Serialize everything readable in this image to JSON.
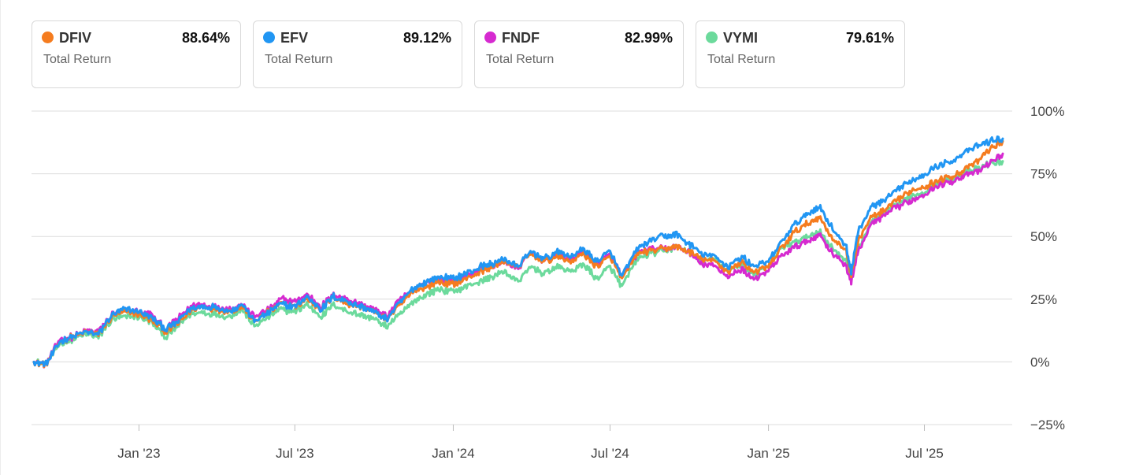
{
  "legend": [
    {
      "ticker": "DFIV",
      "value": "88.64%",
      "sub": "Total Return",
      "color": "#F57C1F"
    },
    {
      "ticker": "EFV",
      "value": "89.12%",
      "sub": "Total Return",
      "color": "#2196F3"
    },
    {
      "ticker": "FNDF",
      "value": "82.99%",
      "sub": "Total Return",
      "color": "#D62AD0"
    },
    {
      "ticker": "VYMI",
      "value": "79.61%",
      "sub": "Total Return",
      "color": "#6CDA9C"
    }
  ],
  "chart_data": {
    "type": "line",
    "x_range": [
      "2022-09-01",
      "2025-09-30"
    ],
    "ylim": [
      -25,
      100
    ],
    "y_ticks": [
      100,
      75,
      50,
      25,
      0,
      -25
    ],
    "y_tick_labels": [
      "100%",
      "75%",
      "50%",
      "25%",
      "0%",
      "−25%"
    ],
    "x_ticks": [
      "2023-01-01",
      "2023-07-01",
      "2024-01-01",
      "2024-07-01",
      "2025-01-01",
      "2025-07-01"
    ],
    "x_tick_labels": [
      "Jan '23",
      "Jul '23",
      "Jan '24",
      "Jul '24",
      "Jan '25",
      "Jul '25"
    ],
    "grid": "horizontal",
    "x": [
      "2022-09-01",
      "2022-09-15",
      "2022-10-01",
      "2022-10-15",
      "2022-11-01",
      "2022-11-15",
      "2022-12-01",
      "2022-12-15",
      "2023-01-01",
      "2023-01-15",
      "2023-02-01",
      "2023-02-15",
      "2023-03-01",
      "2023-03-15",
      "2023-04-01",
      "2023-04-15",
      "2023-05-01",
      "2023-05-15",
      "2023-06-01",
      "2023-06-15",
      "2023-07-01",
      "2023-07-15",
      "2023-08-01",
      "2023-08-15",
      "2023-09-01",
      "2023-09-15",
      "2023-10-01",
      "2023-10-15",
      "2023-11-01",
      "2023-11-15",
      "2023-12-01",
      "2023-12-15",
      "2024-01-01",
      "2024-01-15",
      "2024-02-01",
      "2024-02-15",
      "2024-03-01",
      "2024-03-15",
      "2024-04-01",
      "2024-04-15",
      "2024-05-01",
      "2024-05-15",
      "2024-06-01",
      "2024-06-15",
      "2024-07-01",
      "2024-07-15",
      "2024-08-01",
      "2024-08-15",
      "2024-09-01",
      "2024-09-15",
      "2024-10-01",
      "2024-10-15",
      "2024-11-01",
      "2024-11-15",
      "2024-12-01",
      "2024-12-15",
      "2025-01-01",
      "2025-01-15",
      "2025-02-01",
      "2025-02-15",
      "2025-03-01",
      "2025-03-15",
      "2025-04-01",
      "2025-04-07",
      "2025-04-15",
      "2025-05-01",
      "2025-05-15",
      "2025-06-01",
      "2025-06-15",
      "2025-07-01",
      "2025-07-15",
      "2025-08-01",
      "2025-08-15",
      "2025-09-01",
      "2025-09-15",
      "2025-09-30"
    ],
    "series": [
      {
        "name": "DFIV",
        "color": "#F57C1F",
        "values": [
          0,
          -1,
          8,
          10,
          12,
          11,
          18,
          20,
          19,
          17,
          12,
          15,
          20,
          22,
          21,
          20,
          22,
          16,
          20,
          23,
          22,
          25,
          21,
          26,
          23,
          22,
          20,
          17,
          23,
          28,
          30,
          32,
          31,
          33,
          36,
          38,
          40,
          38,
          43,
          40,
          42,
          40,
          43,
          38,
          42,
          33,
          43,
          44,
          45,
          46,
          44,
          41,
          40,
          36,
          40,
          36,
          38,
          45,
          52,
          55,
          58,
          50,
          44,
          35,
          48,
          58,
          60,
          65,
          68,
          70,
          72,
          74,
          76,
          80,
          85,
          88
        ]
      },
      {
        "name": "EFV",
        "color": "#2196F3",
        "values": [
          0,
          -1,
          8,
          10,
          12,
          11,
          19,
          21,
          20,
          18,
          13,
          16,
          21,
          22,
          22,
          20,
          23,
          16,
          20,
          23,
          22,
          26,
          21,
          26,
          24,
          22,
          20,
          17,
          24,
          29,
          32,
          34,
          33,
          35,
          38,
          39,
          41,
          38,
          44,
          41,
          44,
          42,
          45,
          40,
          44,
          34,
          45,
          48,
          50,
          51,
          47,
          43,
          42,
          38,
          42,
          38,
          40,
          47,
          55,
          59,
          62,
          54,
          46,
          36,
          52,
          62,
          64,
          69,
          72,
          75,
          78,
          80,
          83,
          86,
          88,
          89
        ]
      },
      {
        "name": "FNDF",
        "color": "#D62AD0",
        "values": [
          0,
          -1,
          9,
          10,
          12,
          12,
          19,
          21,
          20,
          19,
          13,
          17,
          22,
          23,
          22,
          21,
          23,
          18,
          21,
          25,
          24,
          27,
          22,
          27,
          25,
          23,
          21,
          18,
          25,
          29,
          32,
          33,
          32,
          34,
          37,
          38,
          40,
          37,
          44,
          40,
          43,
          41,
          44,
          39,
          43,
          34,
          43,
          45,
          45,
          46,
          44,
          39,
          38,
          34,
          37,
          33,
          36,
          42,
          46,
          48,
          51,
          44,
          38,
          32,
          44,
          55,
          58,
          62,
          64,
          67,
          70,
          72,
          74,
          76,
          79,
          83
        ]
      },
      {
        "name": "VYMI",
        "color": "#6CDA9C",
        "values": [
          0,
          -1,
          7,
          9,
          11,
          10,
          17,
          18,
          18,
          16,
          10,
          14,
          19,
          20,
          19,
          18,
          21,
          14,
          18,
          21,
          20,
          23,
          18,
          23,
          20,
          19,
          17,
          14,
          19,
          24,
          27,
          29,
          28,
          30,
          32,
          34,
          36,
          32,
          38,
          35,
          38,
          36,
          39,
          33,
          38,
          30,
          41,
          43,
          44,
          46,
          44,
          40,
          41,
          36,
          39,
          35,
          38,
          45,
          48,
          50,
          52,
          46,
          40,
          34,
          45,
          56,
          59,
          63,
          66,
          68,
          71,
          73,
          75,
          77,
          79,
          80
        ]
      }
    ]
  }
}
